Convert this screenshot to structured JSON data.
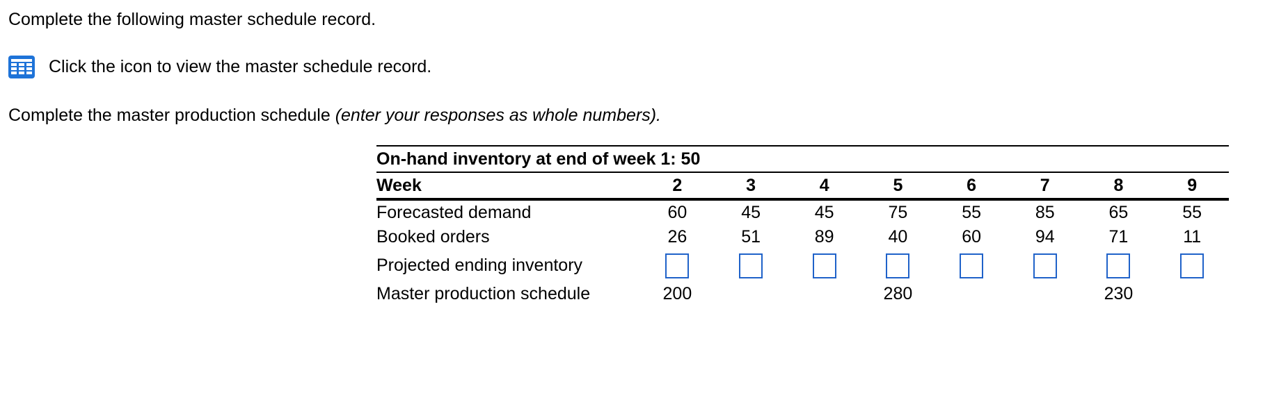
{
  "intro_text": "Complete the following master schedule record.",
  "icon_row": {
    "icon": "table-grid-icon",
    "text": "Click the icon to view the master schedule record."
  },
  "instruction": {
    "text": "Complete the master production schedule ",
    "italic": "(enter your responses as whole numbers)."
  },
  "table": {
    "caption": "On-hand inventory at end of week 1: 50",
    "header_label": "Week",
    "weeks": [
      "2",
      "3",
      "4",
      "5",
      "6",
      "7",
      "8",
      "9"
    ],
    "rows": {
      "forecasted_demand": {
        "label": "Forecasted demand",
        "values": [
          "60",
          "45",
          "45",
          "75",
          "55",
          "85",
          "65",
          "55"
        ]
      },
      "booked_orders": {
        "label": "Booked orders",
        "values": [
          "26",
          "51",
          "89",
          "40",
          "60",
          "94",
          "71",
          "11"
        ]
      },
      "projected_ending_inventory": {
        "label": "Projected ending inventory",
        "values": [
          "",
          "",
          "",
          "",
          "",
          "",
          "",
          ""
        ]
      },
      "master_production_schedule": {
        "label": "Master production schedule",
        "values": [
          "200",
          "",
          "",
          "280",
          "",
          "",
          "230",
          ""
        ]
      }
    }
  },
  "colors": {
    "icon_blue": "#1e73d8",
    "input_border": "#1f62c9"
  }
}
